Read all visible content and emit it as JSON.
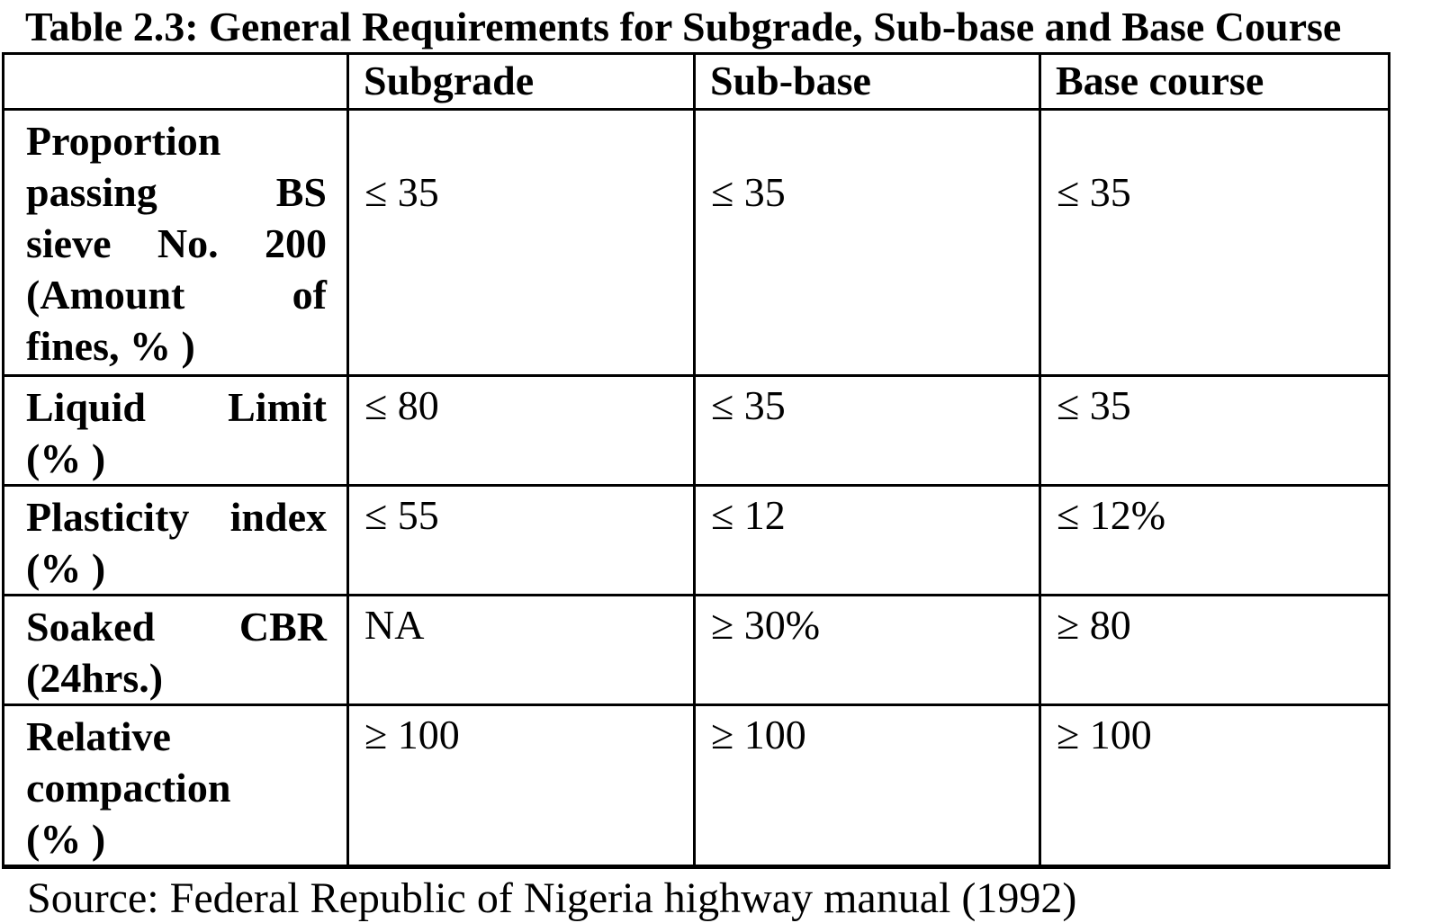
{
  "title": "Table 2.3: General Requirements for Subgrade, Sub-base and Base Course",
  "table": {
    "columns": [
      "",
      "Subgrade",
      "Sub-base",
      "Base course"
    ],
    "rows": [
      {
        "label": "Proportion passing BS sieve No. 200 (Amount of fines, % )",
        "label_lines": [
          {
            "text": "Proportion",
            "justify": false
          },
          {
            "text": "passing BS",
            "justify": true
          },
          {
            "text": "sieve No. 200",
            "justify": true
          },
          {
            "text": "(Amount of",
            "justify": true
          },
          {
            "text": "fines, % )",
            "justify": false
          }
        ],
        "values": [
          "≤ 35",
          "≤ 35",
          "≤ 35"
        ]
      },
      {
        "label": "Liquid Limit (% )",
        "label_lines": [
          {
            "text": "Liquid Limit",
            "justify": true
          },
          {
            "text": "(% )",
            "justify": false
          }
        ],
        "values": [
          "≤ 80",
          "≤ 35",
          "≤ 35"
        ]
      },
      {
        "label": "Plasticity index (% )",
        "label_lines": [
          {
            "text": "Plasticity index",
            "justify": true
          },
          {
            "text": "(% )",
            "justify": false
          }
        ],
        "values": [
          "≤ 55",
          "≤ 12",
          "≤ 12%"
        ]
      },
      {
        "label": "Soaked CBR (24hrs.)",
        "label_lines": [
          {
            "text": "Soaked CBR",
            "justify": true
          },
          {
            "text": "(24hrs.)",
            "justify": false
          }
        ],
        "values": [
          "NA",
          "≥ 30%",
          "≥ 80"
        ]
      },
      {
        "label": "Relative compaction (% )",
        "label_lines": [
          {
            "text": "Relative",
            "justify": false
          },
          {
            "text": "compaction",
            "justify": false
          },
          {
            "text": "(% )",
            "justify": false
          }
        ],
        "values": [
          "≥ 100",
          "≥ 100",
          "≥ 100"
        ]
      }
    ]
  },
  "source_text": "Source: Federal Republic of Nigeria highway manual (1992)"
}
